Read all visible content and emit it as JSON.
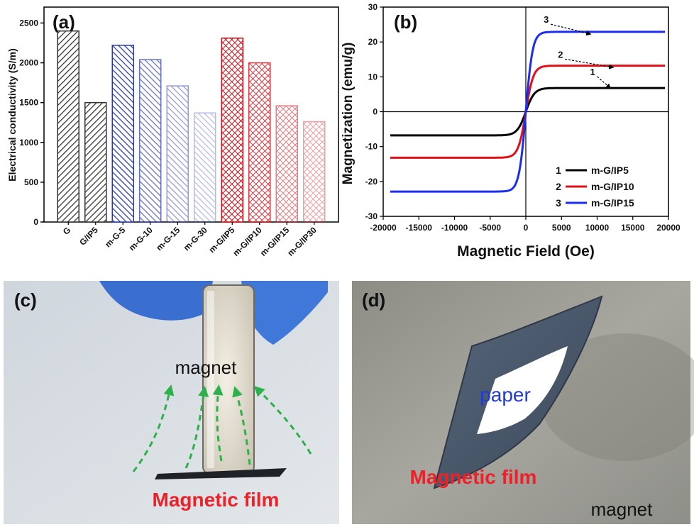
{
  "panels": {
    "a": {
      "label": "(a)"
    },
    "b": {
      "label": "(b)"
    },
    "c": {
      "label": "(c)",
      "texts": {
        "magnet": "magnet",
        "film": "Magnetic film"
      }
    },
    "d": {
      "label": "(d)",
      "texts": {
        "paper": "paper",
        "film": "Magnetic film",
        "magnet": "magnet"
      }
    }
  },
  "colors": {
    "black_bar": "#303030",
    "blue_bar": "#2a3aa8",
    "red_bar": "#d4111a",
    "curve1": "#000000",
    "curve2": "#e0101a",
    "curve3": "#1c2cf0",
    "arrow_green": "#2db14a",
    "film_label": "#ee2128",
    "paper_label": "#1f3ad6"
  },
  "chart_data": [
    {
      "type": "bar",
      "title": "",
      "xlabel": "",
      "ylabel": "Electrical conductivity (S/m)",
      "ylim": [
        0,
        2700
      ],
      "yticks": [
        0,
        500,
        1000,
        1500,
        2000,
        2500
      ],
      "categories": [
        "G",
        "G/IP5",
        "m-G-5",
        "m-G-10",
        "m-G-15",
        "m-G-30",
        "m-G/IP5",
        "m-G/IP10",
        "m-G/IP15",
        "m-G/IP30"
      ],
      "values": [
        2400,
        1500,
        2220,
        2040,
        1710,
        1370,
        2310,
        2000,
        1460,
        1260
      ],
      "groups": [
        "black",
        "black",
        "blue",
        "blue",
        "blue",
        "blue",
        "red",
        "red",
        "red",
        "red"
      ],
      "opacity": [
        1,
        1,
        1,
        0.72,
        0.5,
        0.34,
        1,
        0.82,
        0.55,
        0.4
      ],
      "patterns": [
        "diag",
        "diag",
        "diag",
        "diag",
        "diag",
        "diag",
        "cross",
        "cross",
        "cross",
        "cross"
      ]
    },
    {
      "type": "line",
      "title": "",
      "xlabel": "Magnetic Field (Oe)",
      "ylabel": "Magnetization (emu/g)",
      "xlim": [
        -20000,
        20000
      ],
      "ylim": [
        -30,
        30
      ],
      "xticks": [
        -20000,
        -15000,
        -10000,
        -5000,
        0,
        5000,
        10000,
        15000,
        20000
      ],
      "yticks": [
        -30,
        -20,
        -10,
        0,
        10,
        20,
        30
      ],
      "series": [
        {
          "id": "1",
          "name": "m-G/IP5",
          "ms": 6.8,
          "h0": 1200,
          "xmin": -19000,
          "xmax": 19500
        },
        {
          "id": "2",
          "name": "m-G/IP10",
          "ms": 13.2,
          "h0": 1050,
          "xmin": -19000,
          "xmax": 19500
        },
        {
          "id": "3",
          "name": "m-G/IP15",
          "ms": 22.9,
          "h0": 950,
          "xmin": -19000,
          "xmax": 19500
        }
      ],
      "annotations": [
        {
          "label": "1",
          "x": 9000,
          "y": 10.5
        },
        {
          "label": "2",
          "x": 4500,
          "y": 15.5
        },
        {
          "label": "3",
          "x": 2500,
          "y": 25.5
        }
      ]
    }
  ]
}
